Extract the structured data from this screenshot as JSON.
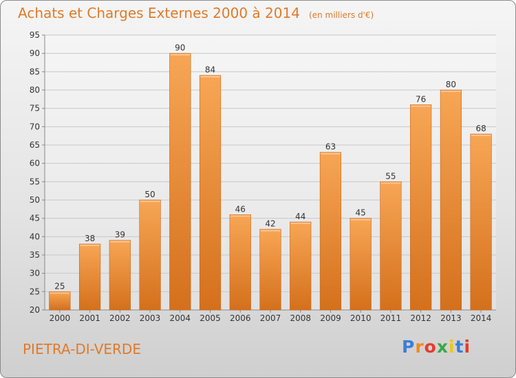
{
  "chart_data": {
    "type": "bar",
    "title": "Achats et Charges Externes 2000 à 2014",
    "subtitle": "(en milliers d'€)",
    "categories": [
      "2000",
      "2001",
      "2002",
      "2003",
      "2004",
      "2005",
      "2006",
      "2007",
      "2008",
      "2009",
      "2010",
      "2011",
      "2012",
      "2013",
      "2014"
    ],
    "values": [
      25,
      38,
      39,
      50,
      90,
      84,
      46,
      42,
      44,
      63,
      45,
      55,
      76,
      80,
      68
    ],
    "ylim": [
      20,
      95
    ],
    "yticks": [
      20,
      25,
      30,
      35,
      40,
      45,
      50,
      55,
      60,
      65,
      70,
      75,
      80,
      85,
      90,
      95
    ],
    "grid": true,
    "bar_color": "#f2953e"
  },
  "footer": {
    "commune": "PIETRA-DI-VERDE",
    "logo_letters": [
      "P",
      "r",
      "o",
      "x",
      "i",
      "t",
      "i"
    ],
    "logo_colors": [
      "#3a7fd5",
      "#f08a1c",
      "#e63b2e",
      "#3aa845",
      "#f0c419",
      "#3a7fd5",
      "#e63b2e"
    ]
  }
}
